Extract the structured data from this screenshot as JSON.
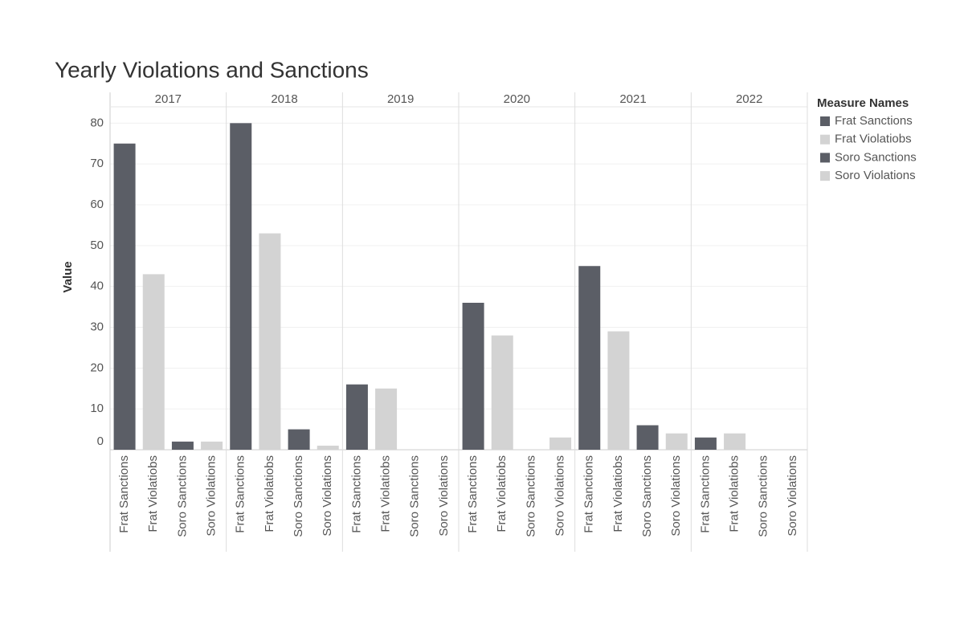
{
  "chart_data": {
    "type": "bar",
    "title": "Yearly Violations and Sanctions",
    "y_label": "Value",
    "legend_title": "Measure Names",
    "legend": "right",
    "grid": true,
    "categories": [
      "2017",
      "2018",
      "2019",
      "2020",
      "2021",
      "2022"
    ],
    "series": [
      {
        "name": "Frat Sanctions",
        "color": "#5b5e66",
        "values": [
          75,
          80,
          16,
          36,
          45,
          3
        ]
      },
      {
        "name": "Frat Violatiobs",
        "color": "#d3d3d3",
        "values": [
          43,
          53,
          15,
          28,
          29,
          4
        ]
      },
      {
        "name": "Soro Sanctions",
        "color": "#5b5e66",
        "values": [
          2,
          5,
          0,
          0,
          6,
          0
        ]
      },
      {
        "name": "Soro Violations",
        "color": "#d3d3d3",
        "values": [
          2,
          1,
          0,
          3,
          4,
          0
        ]
      }
    ],
    "ylim": [
      0,
      84
    ],
    "yticks": [
      0,
      10,
      20,
      30,
      40,
      50,
      60,
      70,
      80
    ]
  }
}
